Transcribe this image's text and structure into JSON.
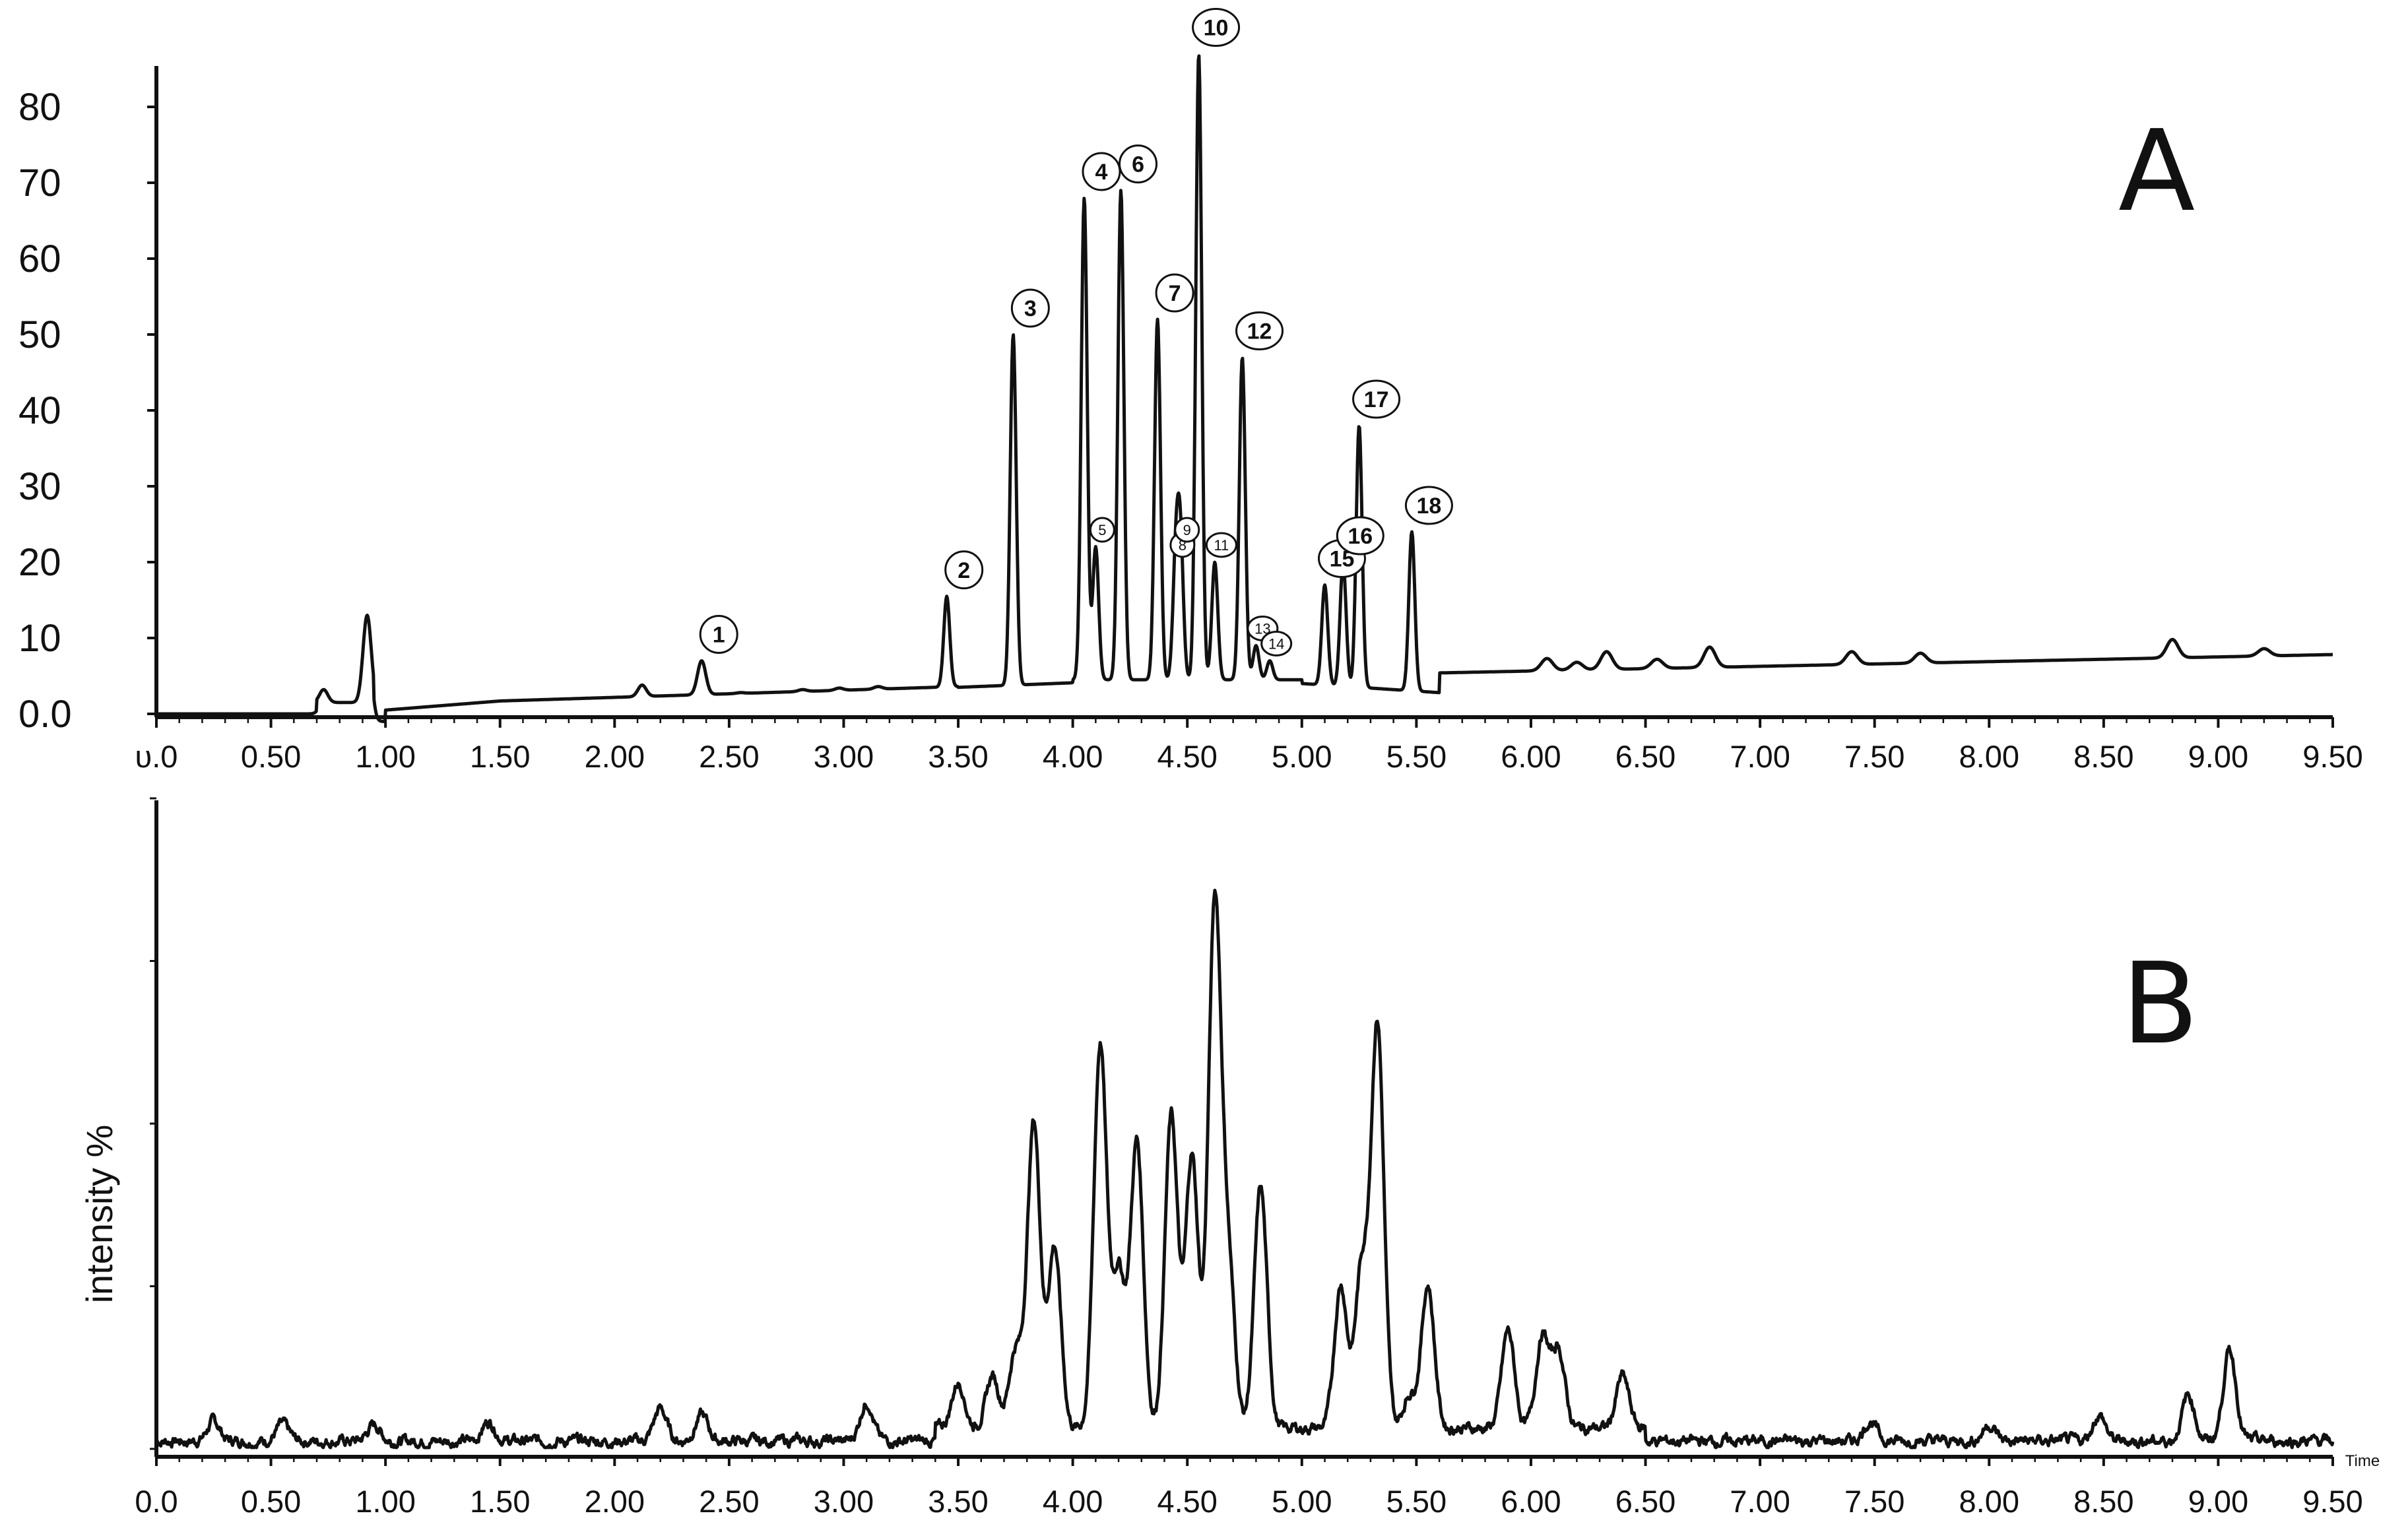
{
  "chart_data": [
    {
      "type": "line",
      "panel": "A",
      "xlabel": "",
      "ylabel": "",
      "xlim": [
        0,
        9.5
      ],
      "ylim": [
        -1,
        87
      ],
      "grid": false,
      "x_tick_labels": [
        "υ.0",
        "0.50",
        "1.00",
        "1.50",
        "2.00",
        "2.50",
        "3.00",
        "3.50",
        "4.00",
        "4.50",
        "5.00",
        "5.50",
        "6.00",
        "6.50",
        "7.00",
        "7.50",
        "8.00",
        "8.50",
        "9.00",
        "9.50"
      ],
      "y_ticks": [
        0,
        10,
        20,
        30,
        40,
        50,
        60,
        70,
        80
      ],
      "y_tick_labels": [
        "0.0",
        "10",
        "20",
        "30",
        "40",
        "50",
        "60",
        "70",
        "80"
      ],
      "peaks": [
        {
          "label": "1",
          "x": 2.38,
          "y": 7
        },
        {
          "label": "2",
          "x": 3.45,
          "y": 15.5
        },
        {
          "label": "3",
          "x": 3.74,
          "y": 50
        },
        {
          "label": "4",
          "x": 4.05,
          "y": 68
        },
        {
          "label": "5",
          "x": 4.1,
          "y": 22
        },
        {
          "label": "6",
          "x": 4.21,
          "y": 69
        },
        {
          "label": "7",
          "x": 4.37,
          "y": 52
        },
        {
          "label": "8",
          "x": 4.45,
          "y": 20
        },
        {
          "label": "9",
          "x": 4.47,
          "y": 22
        },
        {
          "label": "10",
          "x": 4.55,
          "y": 87
        },
        {
          "label": "11",
          "x": 4.62,
          "y": 20
        },
        {
          "label": "12",
          "x": 4.74,
          "y": 47
        },
        {
          "label": "13",
          "x": 4.8,
          "y": 9
        },
        {
          "label": "14",
          "x": 4.86,
          "y": 7
        },
        {
          "label": "15",
          "x": 5.1,
          "y": 17
        },
        {
          "label": "16",
          "x": 5.18,
          "y": 20
        },
        {
          "label": "17",
          "x": 5.25,
          "y": 38
        },
        {
          "label": "18",
          "x": 5.48,
          "y": 24
        }
      ],
      "extra_peaks": [
        {
          "x": 0.73,
          "y": 3.2
        },
        {
          "x": 0.92,
          "y": 13
        },
        {
          "x": 2.12,
          "y": 3.8
        },
        {
          "x": 2.55,
          "y": 2.8
        },
        {
          "x": 2.82,
          "y": 3.2
        },
        {
          "x": 2.98,
          "y": 3.4
        },
        {
          "x": 3.15,
          "y": 3.6
        },
        {
          "x": 6.07,
          "y": 7.3
        },
        {
          "x": 6.2,
          "y": 6.8
        },
        {
          "x": 6.33,
          "y": 8.2
        },
        {
          "x": 6.55,
          "y": 7.2
        },
        {
          "x": 6.78,
          "y": 8.8
        },
        {
          "x": 7.4,
          "y": 8.2
        },
        {
          "x": 7.7,
          "y": 8.0
        },
        {
          "x": 8.8,
          "y": 9.8
        },
        {
          "x": 9.2,
          "y": 8.6
        }
      ],
      "annotation": "A"
    },
    {
      "type": "line",
      "panel": "B",
      "xlabel": "Time",
      "ylabel": "intensity %",
      "xlim": [
        0,
        9.5
      ],
      "ylim": [
        0,
        100
      ],
      "grid": false,
      "x_tick_labels": [
        "0.0",
        "0.50",
        "1.00",
        "1.50",
        "2.00",
        "2.50",
        "3.00",
        "3.50",
        "4.00",
        "4.50",
        "5.00",
        "5.50",
        "6.00",
        "6.50",
        "7.00",
        "7.50",
        "8.00",
        "8.50",
        "9.00",
        "9.50"
      ],
      "peaks": [
        {
          "x": 0.25,
          "y": 3
        },
        {
          "x": 0.55,
          "y": 2.5
        },
        {
          "x": 0.95,
          "y": 2.5
        },
        {
          "x": 1.45,
          "y": 3
        },
        {
          "x": 2.2,
          "y": 5
        },
        {
          "x": 2.38,
          "y": 4
        },
        {
          "x": 3.1,
          "y": 6
        },
        {
          "x": 3.5,
          "y": 7
        },
        {
          "x": 3.65,
          "y": 8
        },
        {
          "x": 3.75,
          "y": 12
        },
        {
          "x": 3.83,
          "y": 47
        },
        {
          "x": 3.92,
          "y": 28
        },
        {
          "x": 4.12,
          "y": 59
        },
        {
          "x": 4.2,
          "y": 24
        },
        {
          "x": 4.28,
          "y": 44
        },
        {
          "x": 4.43,
          "y": 48
        },
        {
          "x": 4.52,
          "y": 42
        },
        {
          "x": 4.62,
          "y": 80
        },
        {
          "x": 4.68,
          "y": 24
        },
        {
          "x": 4.82,
          "y": 37
        },
        {
          "x": 5.17,
          "y": 22
        },
        {
          "x": 5.26,
          "y": 24
        },
        {
          "x": 5.33,
          "y": 62
        },
        {
          "x": 5.47,
          "y": 5
        },
        {
          "x": 5.55,
          "y": 22
        },
        {
          "x": 5.9,
          "y": 15
        },
        {
          "x": 6.05,
          "y": 14
        },
        {
          "x": 6.12,
          "y": 12
        },
        {
          "x": 6.4,
          "y": 8
        },
        {
          "x": 7.48,
          "y": 3
        },
        {
          "x": 8.0,
          "y": 2.5
        },
        {
          "x": 8.48,
          "y": 4
        },
        {
          "x": 8.87,
          "y": 7
        },
        {
          "x": 9.05,
          "y": 14
        }
      ],
      "annotation": "B"
    }
  ]
}
